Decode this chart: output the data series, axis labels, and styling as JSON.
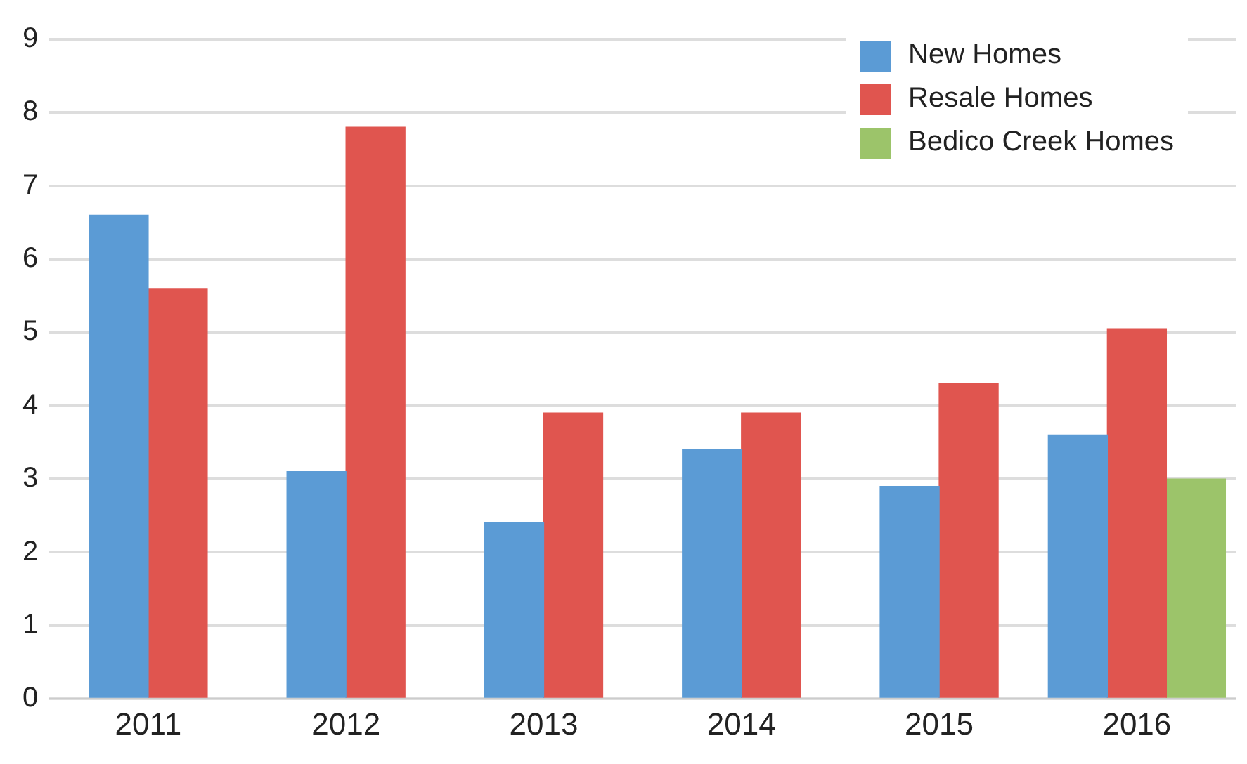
{
  "chart_data": {
    "type": "bar",
    "categories": [
      "2011",
      "2012",
      "2013",
      "2014",
      "2015",
      "2016"
    ],
    "series": [
      {
        "name": "New Homes",
        "color": "#5b9bd5",
        "values": [
          6.6,
          3.1,
          2.4,
          3.4,
          2.9,
          3.6
        ]
      },
      {
        "name": "Resale Homes",
        "color": "#e0554f",
        "values": [
          5.6,
          7.8,
          3.9,
          3.9,
          4.3,
          5.05
        ]
      },
      {
        "name": "Bedico Creek Homes",
        "color": "#9cc46a",
        "values": [
          null,
          null,
          null,
          null,
          null,
          3.0
        ]
      }
    ],
    "ylim": [
      0,
      9
    ],
    "yticks": [
      0,
      1,
      2,
      3,
      4,
      5,
      6,
      7,
      8,
      9
    ],
    "grid": "y",
    "legend": "top right"
  }
}
